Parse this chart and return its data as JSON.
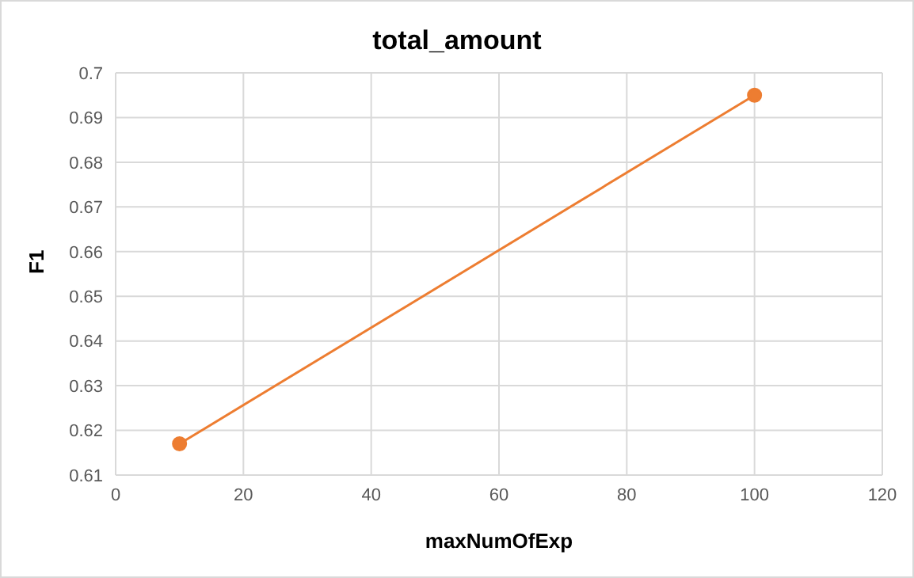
{
  "chart_data": {
    "type": "line",
    "title": "total_amount",
    "xlabel": "maxNumOfExp",
    "ylabel": "F1",
    "x": [
      10,
      100
    ],
    "series": [
      {
        "color": "#ed7d31",
        "values": [
          0.617,
          0.695
        ]
      }
    ],
    "xlim": [
      0,
      120
    ],
    "xticks": [
      0,
      20,
      40,
      60,
      80,
      100,
      120
    ],
    "ylim": [
      0.61,
      0.7
    ],
    "yticks": [
      0.61,
      0.62,
      0.63,
      0.64,
      0.65,
      0.66,
      0.67,
      0.68,
      0.69,
      0.7
    ],
    "grid": true,
    "marker": "circle",
    "line_style": "solid",
    "legend": false
  }
}
